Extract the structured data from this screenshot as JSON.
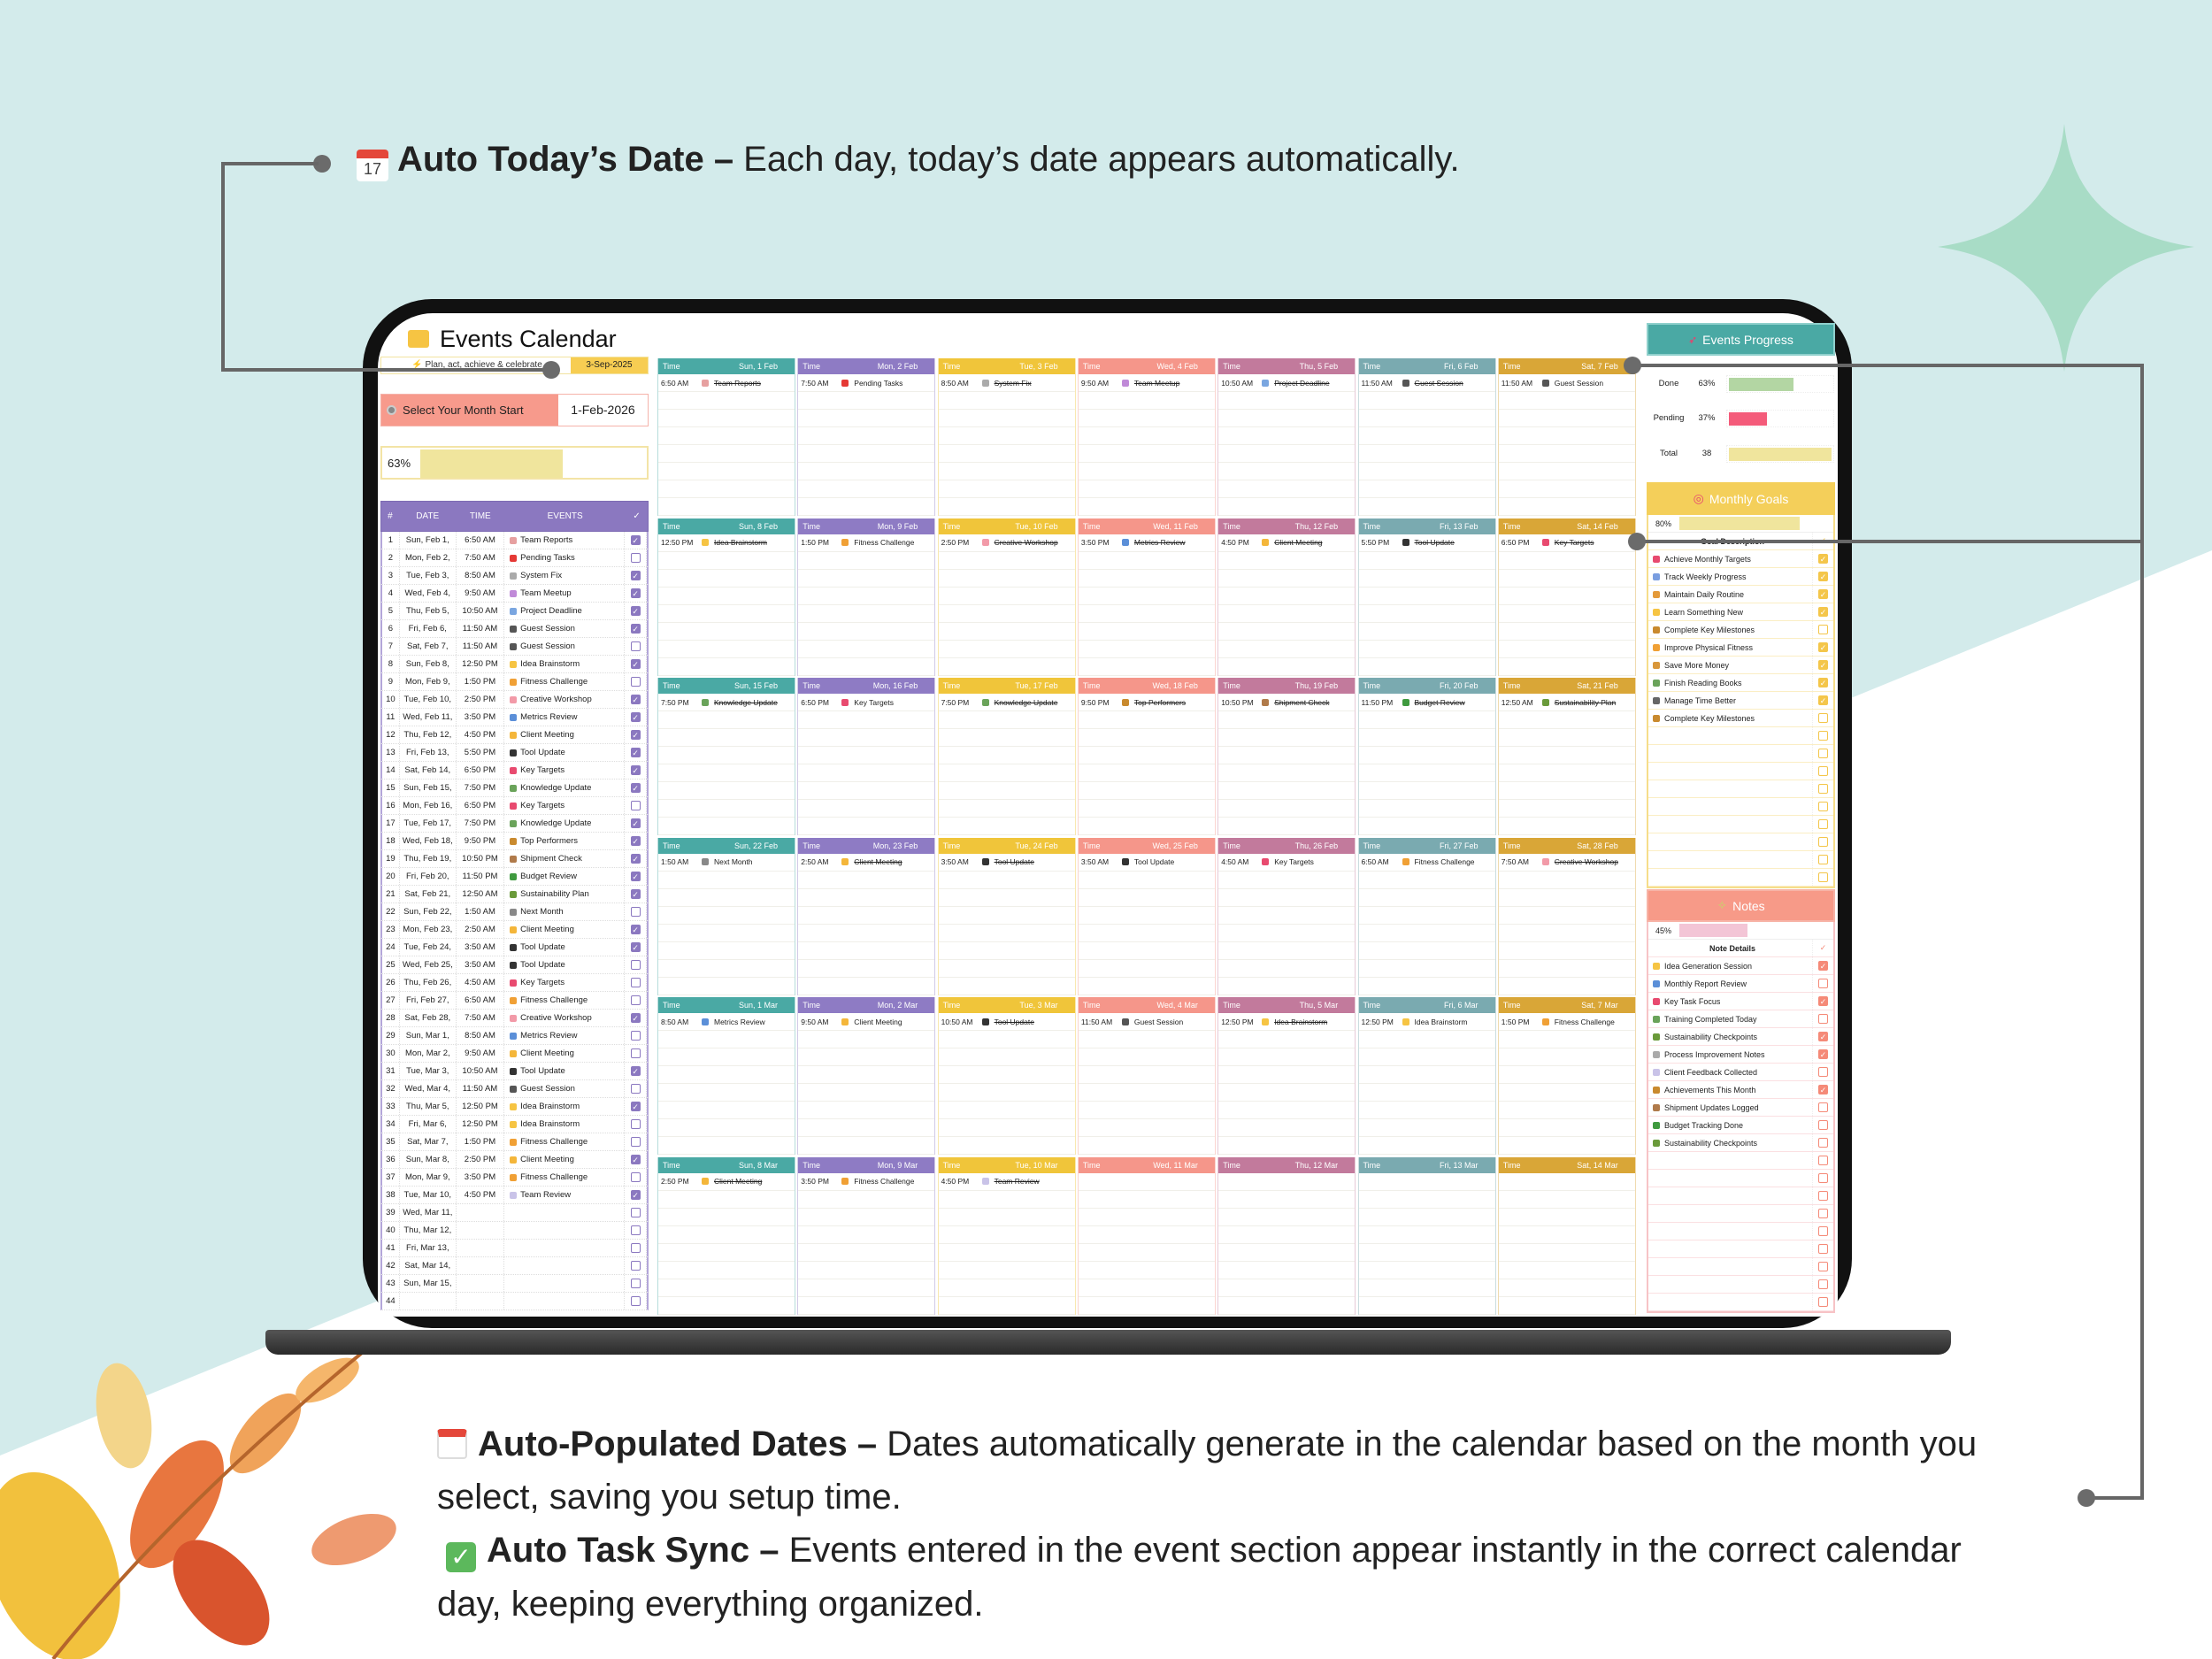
{
  "annotations": {
    "top": {
      "icon": "calendar-17-icon",
      "bold": "Auto Today’s Date –",
      "text": " Each day, today’s date appears automatically."
    },
    "bottom": [
      {
        "icon": "calendar-icon",
        "bold": "Auto-Populated Dates –",
        "text": " Dates automatically generate in the calendar based on the month you",
        "cont": "select, saving you setup time."
      },
      {
        "icon": "check-mark-button-icon",
        "bold": "Auto Task Sync –",
        "text": " Events entered in the event section appear instantly in the correct calendar",
        "cont": "day, keeping everything organized."
      }
    ]
  },
  "colors": {
    "background": "#d3ebeb",
    "star": "#a8dcc6",
    "table_header": "#8b78c0",
    "progress_header": "#4aa9a4",
    "goals_header": "#f4cf5a",
    "notes_header": "#f79a88",
    "done_bar": "#b3d6a3",
    "pending_bar": "#f45b7a"
  },
  "app": {
    "title": "Events Calendar",
    "title_icon": "folder-icon",
    "tagline": "⚡ Plan, act, achieve & celebrate",
    "today": "3-Sep-2025",
    "month_label": "Select Your Month Start",
    "month_value": "1-Feb-2026",
    "progress_pct": "63%",
    "progress_value": 0.63
  },
  "table": {
    "headers": [
      "#",
      "DATE",
      "TIME",
      "EVENTS",
      "✓"
    ],
    "rows": [
      {
        "n": "1",
        "date": "Sun, Feb 1,",
        "time": "6:50 AM",
        "event": "Team Reports",
        "icon": "memo",
        "done": true
      },
      {
        "n": "2",
        "date": "Mon, Feb 2,",
        "time": "7:50 AM",
        "event": "Pending Tasks",
        "icon": "pushpin",
        "done": false
      },
      {
        "n": "3",
        "date": "Tue, Feb 3,",
        "time": "8:50 AM",
        "event": "System Fix",
        "icon": "wrench",
        "done": true
      },
      {
        "n": "4",
        "date": "Wed, Feb 4,",
        "time": "9:50 AM",
        "event": "Team Meetup",
        "icon": "party-popper",
        "done": true
      },
      {
        "n": "5",
        "date": "Thu, Feb 5,",
        "time": "10:50 AM",
        "event": "Project Deadline",
        "icon": "calendar",
        "done": true
      },
      {
        "n": "6",
        "date": "Fri, Feb 6,",
        "time": "11:50 AM",
        "event": "Guest Session",
        "icon": "microphone",
        "done": true
      },
      {
        "n": "7",
        "date": "Sat, Feb 7,",
        "time": "11:50 AM",
        "event": "Guest Session",
        "icon": "microphone",
        "done": false
      },
      {
        "n": "8",
        "date": "Sun, Feb 8,",
        "time": "12:50 PM",
        "event": "Idea Brainstorm",
        "icon": "lightbulb",
        "done": true
      },
      {
        "n": "9",
        "date": "Mon, Feb 9,",
        "time": "1:50 PM",
        "event": "Fitness Challenge",
        "icon": "runner",
        "done": false
      },
      {
        "n": "10",
        "date": "Tue, Feb 10,",
        "time": "2:50 PM",
        "event": "Creative Workshop",
        "icon": "brain",
        "done": true
      },
      {
        "n": "11",
        "date": "Wed, Feb 11,",
        "time": "3:50 PM",
        "event": "Metrics Review",
        "icon": "bar-chart",
        "done": true
      },
      {
        "n": "12",
        "date": "Thu, Feb 12,",
        "time": "4:50 PM",
        "event": "Client Meeting",
        "icon": "handshake",
        "done": true
      },
      {
        "n": "13",
        "date": "Fri, Feb 13,",
        "time": "5:50 PM",
        "event": "Tool Update",
        "icon": "tools",
        "done": true
      },
      {
        "n": "14",
        "date": "Sat, Feb 14,",
        "time": "6:50 PM",
        "event": "Key Targets",
        "icon": "target",
        "done": true
      },
      {
        "n": "15",
        "date": "Sun, Feb 15,",
        "time": "7:50 PM",
        "event": "Knowledge Update",
        "icon": "books",
        "done": true
      },
      {
        "n": "16",
        "date": "Mon, Feb 16,",
        "time": "6:50 PM",
        "event": "Key Targets",
        "icon": "target",
        "done": false
      },
      {
        "n": "17",
        "date": "Tue, Feb 17,",
        "time": "7:50 PM",
        "event": "Knowledge Update",
        "icon": "books",
        "done": true
      },
      {
        "n": "18",
        "date": "Wed, Feb 18,",
        "time": "9:50 PM",
        "event": "Top Performers",
        "icon": "trophy",
        "done": true
      },
      {
        "n": "19",
        "date": "Thu, Feb 19,",
        "time": "10:50 PM",
        "event": "Shipment Check",
        "icon": "package",
        "done": true
      },
      {
        "n": "20",
        "date": "Fri, Feb 20,",
        "time": "11:50 PM",
        "event": "Budget Review",
        "icon": "money",
        "done": true
      },
      {
        "n": "21",
        "date": "Sat, Feb 21,",
        "time": "12:50 AM",
        "event": "Sustainability Plan",
        "icon": "seedling",
        "done": true
      },
      {
        "n": "22",
        "date": "Sun, Feb 22,",
        "time": "1:50 AM",
        "event": "Next Month",
        "icon": "calendar-next",
        "done": false
      },
      {
        "n": "23",
        "date": "Mon, Feb 23,",
        "time": "2:50 AM",
        "event": "Client Meeting",
        "icon": "handshake",
        "done": true
      },
      {
        "n": "24",
        "date": "Tue, Feb 24,",
        "time": "3:50 AM",
        "event": "Tool Update",
        "icon": "tools",
        "done": true
      },
      {
        "n": "25",
        "date": "Wed, Feb 25,",
        "time": "3:50 AM",
        "event": "Tool Update",
        "icon": "tools",
        "done": false
      },
      {
        "n": "26",
        "date": "Thu, Feb 26,",
        "time": "4:50 AM",
        "event": "Key Targets",
        "icon": "target",
        "done": false
      },
      {
        "n": "27",
        "date": "Fri, Feb 27,",
        "time": "6:50 AM",
        "event": "Fitness Challenge",
        "icon": "runner",
        "done": false
      },
      {
        "n": "28",
        "date": "Sat, Feb 28,",
        "time": "7:50 AM",
        "event": "Creative Workshop",
        "icon": "brain",
        "done": true
      },
      {
        "n": "29",
        "date": "Sun, Mar 1,",
        "time": "8:50 AM",
        "event": "Metrics Review",
        "icon": "bar-chart",
        "done": false
      },
      {
        "n": "30",
        "date": "Mon, Mar 2,",
        "time": "9:50 AM",
        "event": "Client Meeting",
        "icon": "handshake",
        "done": false
      },
      {
        "n": "31",
        "date": "Tue, Mar 3,",
        "time": "10:50 AM",
        "event": "Tool Update",
        "icon": "tools",
        "done": true
      },
      {
        "n": "32",
        "date": "Wed, Mar 4,",
        "time": "11:50 AM",
        "event": "Guest Session",
        "icon": "microphone",
        "done": false
      },
      {
        "n": "33",
        "date": "Thu, Mar 5,",
        "time": "12:50 PM",
        "event": "Idea Brainstorm",
        "icon": "lightbulb",
        "done": true
      },
      {
        "n": "34",
        "date": "Fri, Mar 6,",
        "time": "12:50 PM",
        "event": "Idea Brainstorm",
        "icon": "lightbulb",
        "done": false
      },
      {
        "n": "35",
        "date": "Sat, Mar 7,",
        "time": "1:50 PM",
        "event": "Fitness Challenge",
        "icon": "runner",
        "done": false
      },
      {
        "n": "36",
        "date": "Sun, Mar 8,",
        "time": "2:50 PM",
        "event": "Client Meeting",
        "icon": "handshake",
        "done": true
      },
      {
        "n": "37",
        "date": "Mon, Mar 9,",
        "time": "3:50 PM",
        "event": "Fitness Challenge",
        "icon": "runner",
        "done": false
      },
      {
        "n": "38",
        "date": "Tue, Mar 10,",
        "time": "4:50 PM",
        "event": "Team Review",
        "icon": "speech-bubble",
        "done": true
      },
      {
        "n": "39",
        "date": "Wed, Mar 11,",
        "time": "",
        "event": "",
        "icon": "",
        "done": false
      },
      {
        "n": "40",
        "date": "Thu, Mar 12,",
        "time": "",
        "event": "",
        "icon": "",
        "done": false
      },
      {
        "n": "41",
        "date": "Fri, Mar 13,",
        "time": "",
        "event": "",
        "icon": "",
        "done": false
      },
      {
        "n": "42",
        "date": "Sat, Mar 14,",
        "time": "",
        "event": "",
        "icon": "",
        "done": false
      },
      {
        "n": "43",
        "date": "Sun, Mar 15,",
        "time": "",
        "event": "",
        "icon": "",
        "done": false
      },
      {
        "n": "44",
        "date": "",
        "time": "",
        "event": "",
        "icon": "",
        "done": false
      }
    ]
  },
  "calendar": {
    "time_label": "Time",
    "column_colors": [
      "#4aa9a4",
      "#8e7bc4",
      "#f0c53a",
      "#f5968a",
      "#c27a9c",
      "#7aaab0",
      "#d9a637"
    ],
    "days": [
      "Sun, 1 Feb",
      "Mon, 2 Feb",
      "Tue, 3 Feb",
      "Wed, 4 Feb",
      "Thu, 5 Feb",
      "Fri, 6 Feb",
      "Sat, 7 Feb",
      "Sun, 8 Feb",
      "Mon, 9 Feb",
      "Tue, 10 Feb",
      "Wed, 11 Feb",
      "Thu, 12 Feb",
      "Fri, 13 Feb",
      "Sat, 14 Feb",
      "Sun, 15 Feb",
      "Mon, 16 Feb",
      "Tue, 17 Feb",
      "Wed, 18 Feb",
      "Thu, 19 Feb",
      "Fri, 20 Feb",
      "Sat, 21 Feb",
      "Sun, 22 Feb",
      "Mon, 23 Feb",
      "Tue, 24 Feb",
      "Wed, 25 Feb",
      "Thu, 26 Feb",
      "Fri, 27 Feb",
      "Sat, 28 Feb",
      "Sun, 1 Mar",
      "Mon, 2 Mar",
      "Tue, 3 Mar",
      "Wed, 4 Mar",
      "Thu, 5 Mar",
      "Fri, 6 Mar",
      "Sat, 7 Mar",
      "Sun, 8 Mar",
      "Mon, 9 Mar",
      "Tue, 10 Mar",
      "Wed, 11 Mar",
      "Thu, 12 Mar",
      "Fri, 13 Mar",
      "Sat, 14 Mar"
    ]
  },
  "progress": {
    "title": "Events Progress",
    "icon": "rocket-icon",
    "rows": [
      {
        "label": "Done",
        "value": "63%",
        "fill": 0.63
      },
      {
        "label": "Pending",
        "value": "37%",
        "fill": 0.37
      },
      {
        "label": "Total",
        "value": "38",
        "fill": 1.0
      }
    ]
  },
  "goals": {
    "title": "Monthly Goals",
    "icon": "target-icon",
    "pct": "80%",
    "fill": 0.8,
    "header": "Goal Description",
    "check_header": "✓",
    "items": [
      {
        "text": "Achieve Monthly Targets",
        "icon": "target",
        "done": true
      },
      {
        "text": "Track Weekly Progress",
        "icon": "chart-up",
        "done": true
      },
      {
        "text": "Maintain Daily Routine",
        "icon": "meditation",
        "done": true
      },
      {
        "text": "Learn Something New",
        "icon": "lightbulb",
        "done": true
      },
      {
        "text": "Complete Key Milestones",
        "icon": "trophy",
        "done": false
      },
      {
        "text": "Improve Physical Fitness",
        "icon": "runner",
        "done": true
      },
      {
        "text": "Save More Money",
        "icon": "money-bag",
        "done": true
      },
      {
        "text": "Finish Reading Books",
        "icon": "books",
        "done": true
      },
      {
        "text": "Manage Time Better",
        "icon": "clock",
        "done": true
      },
      {
        "text": "Complete Key Milestones",
        "icon": "trophy",
        "done": false
      },
      {
        "text": "",
        "icon": "",
        "done": false
      },
      {
        "text": "",
        "icon": "",
        "done": false
      },
      {
        "text": "",
        "icon": "",
        "done": false
      },
      {
        "text": "",
        "icon": "",
        "done": false
      },
      {
        "text": "",
        "icon": "",
        "done": false
      },
      {
        "text": "",
        "icon": "",
        "done": false
      },
      {
        "text": "",
        "icon": "",
        "done": false
      },
      {
        "text": "",
        "icon": "",
        "done": false
      },
      {
        "text": "",
        "icon": "",
        "done": false
      }
    ]
  },
  "notes": {
    "title": "Notes",
    "icon": "sparkles-icon",
    "pct": "45%",
    "fill": 0.45,
    "header": "Note Details",
    "check_header": "✓",
    "items": [
      {
        "text": "Idea Generation Session",
        "icon": "lightbulb",
        "done": true
      },
      {
        "text": "Monthly Report Review",
        "icon": "bar-chart",
        "done": false
      },
      {
        "text": "Key Task Focus",
        "icon": "target",
        "done": true
      },
      {
        "text": "Training Completed Today",
        "icon": "books",
        "done": false
      },
      {
        "text": "Sustainability Checkpoints",
        "icon": "seedling",
        "done": true
      },
      {
        "text": "Process Improvement Notes",
        "icon": "wrench",
        "done": true
      },
      {
        "text": "Client Feedback Collected",
        "icon": "speech-bubble",
        "done": false
      },
      {
        "text": "Achievements This Month",
        "icon": "trophy",
        "done": true
      },
      {
        "text": "Shipment Updates Logged",
        "icon": "package",
        "done": false
      },
      {
        "text": "Budget Tracking Done",
        "icon": "money",
        "done": false
      },
      {
        "text": "Sustainability Checkpoints",
        "icon": "seedling",
        "done": false
      },
      {
        "text": "",
        "icon": "",
        "done": false
      },
      {
        "text": "",
        "icon": "",
        "done": false
      },
      {
        "text": "",
        "icon": "",
        "done": false
      },
      {
        "text": "",
        "icon": "",
        "done": false
      },
      {
        "text": "",
        "icon": "",
        "done": false
      },
      {
        "text": "",
        "icon": "",
        "done": false
      },
      {
        "text": "",
        "icon": "",
        "done": false
      },
      {
        "text": "",
        "icon": "",
        "done": false
      },
      {
        "text": "",
        "icon": "",
        "done": false
      }
    ]
  }
}
